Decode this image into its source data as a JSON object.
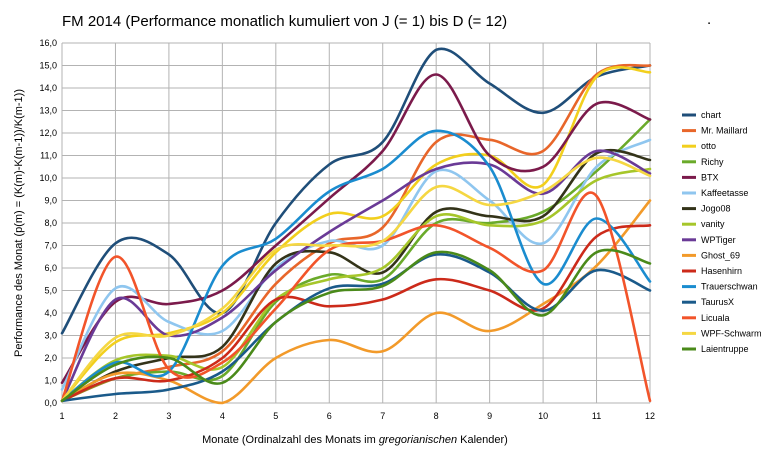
{
  "chart_data": {
    "type": "line",
    "title": "FM 2014 (Performance monatlich kumuliert von J (= 1) bis D (= 12)",
    "title_mark": ".",
    "xlabel_parts": [
      "Monate (Ordinalzahl des Monats im ",
      "gregorianischen",
      " Kalender)"
    ],
    "ylabel": "Performance des Monat (p(m) = (K(m)-K(m-1))/K(m-1))",
    "xlim": [
      1,
      12
    ],
    "ylim": [
      0,
      16
    ],
    "grid": true,
    "legend_position": "right",
    "x": [
      1,
      2,
      3,
      4,
      5,
      6,
      7,
      8,
      9,
      10,
      11,
      12
    ],
    "x_ticks": [
      "1",
      "2",
      "3",
      "4",
      "5",
      "6",
      "7",
      "8",
      "9",
      "10",
      "11",
      "12"
    ],
    "y_ticks": [
      "0,0",
      "1,0",
      "2,0",
      "3,0",
      "4,0",
      "5,0",
      "6,0",
      "7,0",
      "8,0",
      "9,0",
      "10,0",
      "11,0",
      "12,0",
      "13,0",
      "14,0",
      "15,0",
      "16,0"
    ],
    "y_tick_values": [
      0,
      1,
      2,
      3,
      4,
      5,
      6,
      7,
      8,
      9,
      10,
      11,
      12,
      13,
      14,
      15,
      16
    ],
    "series": [
      {
        "name": "chart",
        "color": "#1f4e79",
        "values": [
          3.1,
          7.1,
          6.6,
          4.0,
          8.0,
          10.6,
          11.6,
          15.7,
          14.2,
          12.9,
          14.5,
          15.0
        ]
      },
      {
        "name": "Mr. Maillard",
        "color": "#e8662a",
        "values": [
          0.1,
          1.1,
          1.6,
          2.3,
          5.3,
          7.1,
          7.8,
          11.6,
          11.7,
          11.2,
          14.6,
          15.0
        ]
      },
      {
        "name": "otto",
        "color": "#f2cf1d",
        "values": [
          0.1,
          2.7,
          3.1,
          4.0,
          6.7,
          8.4,
          8.3,
          10.6,
          11.0,
          9.7,
          14.5,
          14.7
        ]
      },
      {
        "name": "Richy",
        "color": "#6aaa2a",
        "values": [
          0.1,
          1.1,
          1.4,
          1.2,
          4.5,
          5.7,
          5.5,
          8.0,
          8.0,
          8.5,
          10.3,
          12.6
        ]
      },
      {
        "name": "BTX",
        "color": "#7b1a4b",
        "values": [
          0.9,
          4.5,
          4.4,
          5.0,
          7.0,
          9.1,
          11.2,
          14.6,
          11.0,
          10.5,
          13.3,
          12.6
        ]
      },
      {
        "name": "Kaffeetasse",
        "color": "#8fc6ef",
        "values": [
          0.6,
          5.1,
          3.6,
          3.2,
          6.0,
          7.2,
          7.0,
          10.3,
          9.0,
          7.1,
          10.5,
          11.7
        ]
      },
      {
        "name": "Jogo08",
        "color": "#333319",
        "values": [
          0.1,
          1.4,
          2.0,
          2.5,
          6.2,
          6.7,
          5.8,
          8.5,
          8.3,
          8.3,
          11.1,
          10.8
        ]
      },
      {
        "name": "vanity",
        "color": "#a6c62a",
        "values": [
          0.1,
          1.9,
          2.1,
          1.6,
          4.6,
          5.5,
          6.0,
          8.3,
          7.9,
          8.1,
          9.9,
          10.4
        ]
      },
      {
        "name": "WPTiger",
        "color": "#6a3a96",
        "values": [
          0.1,
          4.6,
          3.0,
          3.8,
          5.9,
          7.6,
          9.0,
          10.4,
          10.6,
          9.3,
          11.2,
          10.2
        ]
      },
      {
        "name": "Ghost_69",
        "color": "#f29a2a",
        "values": [
          0.1,
          1.3,
          1.0,
          0.0,
          2.0,
          2.8,
          2.3,
          4.0,
          3.2,
          4.4,
          6.1,
          9.0
        ]
      },
      {
        "name": "Hasenhirn",
        "color": "#cc2a1a",
        "values": [
          0.1,
          1.1,
          1.0,
          2.0,
          4.6,
          4.3,
          4.6,
          5.5,
          5.0,
          4.2,
          7.4,
          7.9
        ]
      },
      {
        "name": "Trauerschwan",
        "color": "#1a8ccf",
        "values": [
          0.1,
          1.8,
          1.4,
          6.1,
          7.3,
          9.4,
          10.4,
          12.1,
          10.5,
          5.3,
          8.2,
          5.4
        ]
      },
      {
        "name": "TaurusX",
        "color": "#1a5a8a",
        "values": [
          0.1,
          0.4,
          0.6,
          1.4,
          3.6,
          5.1,
          5.3,
          6.6,
          5.8,
          4.1,
          5.9,
          5.0
        ]
      },
      {
        "name": "Licuala",
        "color": "#f2542a",
        "values": [
          0.1,
          6.5,
          1.5,
          1.8,
          4.2,
          6.8,
          7.2,
          7.9,
          6.9,
          5.9,
          9.2,
          0.1
        ]
      },
      {
        "name": "WPF-Schwarm",
        "color": "#f5d742",
        "values": [
          0.1,
          2.9,
          3.0,
          4.2,
          6.8,
          7.0,
          7.2,
          9.6,
          8.8,
          9.4,
          10.9,
          10.1
        ]
      },
      {
        "name": "Laientruppe",
        "color": "#4a8a1a",
        "values": [
          0.1,
          1.7,
          2.0,
          0.9,
          3.6,
          4.9,
          5.2,
          6.7,
          5.9,
          3.9,
          6.7,
          6.2
        ]
      }
    ]
  }
}
